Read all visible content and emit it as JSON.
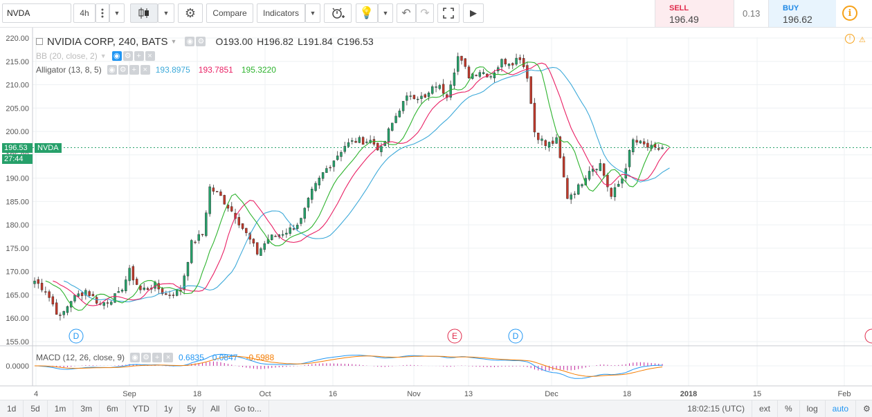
{
  "toolbar": {
    "symbol": "NVDA",
    "interval": "4h",
    "compare_label": "Compare",
    "indicators_label": "Indicators"
  },
  "trade": {
    "sell_label": "SELL",
    "sell_price": "196.49",
    "spread": "0.13",
    "buy_label": "BUY",
    "buy_price": "196.62"
  },
  "legend": {
    "title": "NVIDIA CORP, 240, BATS",
    "open": "O193.00",
    "high": "H196.82",
    "low": "L191.84",
    "close": "C196.53",
    "bb_label": "BB (20, close, 2)",
    "alligator_label": "Alligator (13, 8, 5)",
    "alligator_values": [
      "193.8975",
      "193.7851",
      "195.3220"
    ],
    "macd_label": "MACD (12, 26, close, 9)",
    "macd_values": [
      "0.6835",
      "0.0847",
      "-0.5988"
    ]
  },
  "price_tag": {
    "price": "196.53",
    "symbol": "NVDA",
    "countdown": "27:44"
  },
  "colors": {
    "up": "#26a06a",
    "down": "#c0392b",
    "jaw": "#3ca9d9",
    "teeth": "#e91e63",
    "lips": "#2db32d",
    "macd": "#2196f3",
    "signal": "#f57c00",
    "hist": "#c1249b"
  },
  "bottombar": {
    "ranges": [
      "1d",
      "5d",
      "1m",
      "3m",
      "6m",
      "YTD",
      "1y",
      "5y",
      "All"
    ],
    "goto": "Go to...",
    "time": "18:02:15 (UTC)",
    "right": [
      "ext",
      "%",
      "log",
      "auto"
    ]
  },
  "chart_data": {
    "type": "candlestick",
    "title": "NVIDIA CORP, 240, BATS",
    "ylim": [
      155,
      220
    ],
    "y_ticks": [
      "220.00",
      "215.00",
      "210.00",
      "205.00",
      "200.00",
      "195.00",
      "190.00",
      "185.00",
      "180.00",
      "175.00",
      "170.00",
      "165.00",
      "160.00",
      "155.00"
    ],
    "x_ticks": [
      "4",
      "Sep",
      "18",
      "Oct",
      "16",
      "Nov",
      "13",
      "Dec",
      "18",
      "2018",
      "15",
      "Feb"
    ],
    "events": [
      "D",
      "E",
      "D"
    ],
    "anchors": [
      [
        0,
        168
      ],
      [
        3,
        166
      ],
      [
        7,
        160
      ],
      [
        10,
        164
      ],
      [
        14,
        166
      ],
      [
        18,
        163
      ],
      [
        23,
        165
      ],
      [
        26,
        170
      ],
      [
        29,
        166
      ],
      [
        33,
        167
      ],
      [
        36,
        165
      ],
      [
        40,
        166
      ],
      [
        43,
        176
      ],
      [
        46,
        178
      ],
      [
        48,
        188
      ],
      [
        51,
        186
      ],
      [
        55,
        182
      ],
      [
        58,
        178
      ],
      [
        61,
        174
      ],
      [
        64,
        177
      ],
      [
        67,
        178
      ],
      [
        70,
        179
      ],
      [
        73,
        181
      ],
      [
        76,
        187
      ],
      [
        79,
        191
      ],
      [
        82,
        194
      ],
      [
        85,
        197
      ],
      [
        88,
        198
      ],
      [
        92,
        198
      ],
      [
        95,
        196
      ],
      [
        97,
        200
      ],
      [
        100,
        205
      ],
      [
        103,
        208
      ],
      [
        107,
        207
      ],
      [
        110,
        210
      ],
      [
        113,
        208
      ],
      [
        116,
        216
      ],
      [
        119,
        212
      ],
      [
        122,
        213
      ],
      [
        125,
        212
      ],
      [
        128,
        215
      ],
      [
        131,
        215
      ],
      [
        133,
        216
      ],
      [
        135,
        212
      ],
      [
        137,
        200
      ],
      [
        140,
        197
      ],
      [
        143,
        198
      ],
      [
        146,
        186
      ],
      [
        149,
        188
      ],
      [
        152,
        192
      ],
      [
        155,
        193
      ],
      [
        158,
        186
      ],
      [
        161,
        190
      ],
      [
        164,
        198
      ],
      [
        167,
        197
      ],
      [
        170,
        196
      ],
      [
        172,
        196.53
      ]
    ],
    "macd_ylim": [
      -3.5,
      3.5
    ],
    "macd_y_ticks": [
      "0.0000"
    ]
  }
}
